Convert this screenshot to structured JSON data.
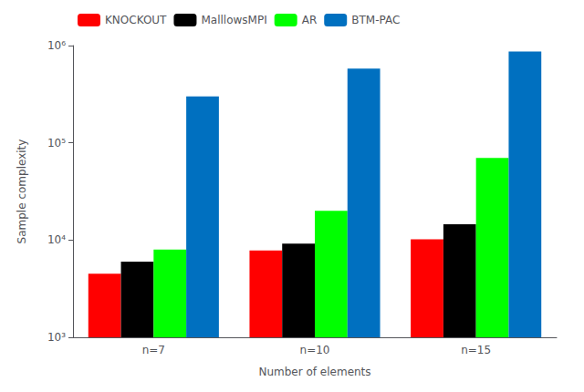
{
  "chart_data": {
    "type": "bar",
    "xlabel": "Number of elements",
    "ylabel": "Sample complexity",
    "categories": [
      "n=7",
      "n=10",
      "n=15"
    ],
    "series": [
      {
        "name": "KNOCKOUT",
        "color": "#FF0000",
        "values": [
          4500,
          7800,
          10200
        ]
      },
      {
        "name": "MalllowsMPI",
        "color": "#000000",
        "values": [
          6000,
          9200,
          14500
        ]
      },
      {
        "name": "AR",
        "color": "#00FF00",
        "values": [
          8000,
          20000,
          70000
        ]
      },
      {
        "name": "BTM-PAC",
        "color": "#0070C0",
        "values": [
          300000,
          580000,
          870000
        ]
      }
    ],
    "log": "y",
    "ylim": [
      1000,
      1000000
    ],
    "yticks": [
      {
        "value": 1000,
        "label": "10³"
      },
      {
        "value": 10000,
        "label": "10⁴"
      },
      {
        "value": 100000,
        "label": "10⁵"
      },
      {
        "value": 1000000,
        "label": "10⁶"
      }
    ],
    "grid": false,
    "legend": "upper left"
  }
}
